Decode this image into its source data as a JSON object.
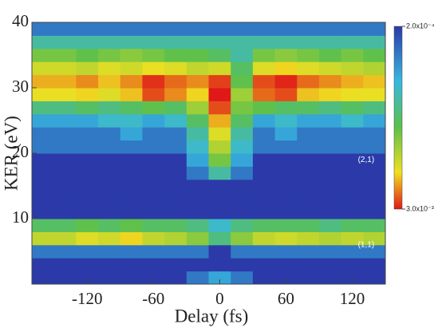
{
  "chart_data": {
    "type": "heatmap",
    "xlabel": "Delay (fs)",
    "ylabel": "KER (eV)",
    "xlim": [
      -170,
      150
    ],
    "ylim": [
      0,
      40
    ],
    "xticks": [
      -120,
      -60,
      0,
      60,
      120
    ],
    "yticks": [
      10,
      20,
      30,
      40
    ],
    "xbins": [
      -170,
      -130,
      -110,
      -90,
      -70,
      -50,
      -30,
      -10,
      10,
      30,
      50,
      70,
      90,
      110,
      130,
      150
    ],
    "ybins": [
      0,
      2,
      4,
      6,
      8,
      10,
      12,
      14,
      16,
      18,
      20,
      22,
      24,
      26,
      28,
      30,
      32,
      34,
      36,
      38,
      40
    ],
    "z": [
      [
        0.0002,
        0.0002,
        0.0002,
        0.0002,
        0.0002,
        0.0002,
        0.0003,
        0.0004,
        0.0003,
        0.0002,
        0.0002,
        0.0002,
        0.0002,
        0.0002,
        0.0002
      ],
      [
        0.0002,
        0.0002,
        0.0002,
        0.0002,
        0.0002,
        0.0002,
        0.0002,
        0.0002,
        0.0002,
        0.0002,
        0.0002,
        0.0002,
        0.0002,
        0.0002,
        0.0002
      ],
      [
        0.0003,
        0.0003,
        0.0003,
        0.0003,
        0.0003,
        0.0003,
        0.0003,
        0.0002,
        0.0003,
        0.0003,
        0.0003,
        0.0003,
        0.0003,
        0.0003,
        0.0003
      ],
      [
        0.0014,
        0.0016,
        0.0015,
        0.0018,
        0.0014,
        0.0013,
        0.0011,
        0.0007,
        0.0011,
        0.0014,
        0.0015,
        0.0014,
        0.0013,
        0.0014,
        0.0013
      ],
      [
        0.0008,
        0.0009,
        0.0008,
        0.0009,
        0.0008,
        0.0008,
        0.0007,
        0.0005,
        0.0007,
        0.0008,
        0.0008,
        0.0008,
        0.0007,
        0.0008,
        0.0008
      ],
      [
        0.0002,
        0.0002,
        0.0002,
        0.0002,
        0.0002,
        0.0002,
        0.0002,
        0.0002,
        0.0002,
        0.0002,
        0.0002,
        0.0002,
        0.0002,
        0.0002,
        0.0002
      ],
      [
        0.0002,
        0.0002,
        0.0002,
        0.0002,
        0.0002,
        0.0002,
        0.0002,
        0.0002,
        0.0002,
        0.0002,
        0.0002,
        0.0002,
        0.0002,
        0.0002,
        0.0002
      ],
      [
        0.0002,
        0.0002,
        0.0002,
        0.0002,
        0.0002,
        0.0002,
        0.0002,
        0.0002,
        0.0002,
        0.0002,
        0.0002,
        0.0002,
        0.0002,
        0.0002,
        0.0002
      ],
      [
        0.0002,
        0.0002,
        0.0002,
        0.0002,
        0.0002,
        0.0002,
        0.0003,
        0.0006,
        0.0003,
        0.0002,
        0.0002,
        0.0002,
        0.0002,
        0.0002,
        0.0002
      ],
      [
        0.0002,
        0.0002,
        0.0002,
        0.0002,
        0.0002,
        0.0002,
        0.0004,
        0.001,
        0.0004,
        0.0002,
        0.0002,
        0.0002,
        0.0002,
        0.0002,
        0.0002
      ],
      [
        0.0003,
        0.0003,
        0.0003,
        0.0003,
        0.0003,
        0.0003,
        0.0005,
        0.0013,
        0.0005,
        0.0003,
        0.0003,
        0.0003,
        0.0003,
        0.0003,
        0.0003
      ],
      [
        0.0003,
        0.0003,
        0.0003,
        0.0004,
        0.0003,
        0.0003,
        0.0006,
        0.0016,
        0.0006,
        0.0003,
        0.0004,
        0.0003,
        0.0003,
        0.0003,
        0.0003
      ],
      [
        0.0004,
        0.0004,
        0.0005,
        0.0005,
        0.0004,
        0.0005,
        0.0008,
        0.002,
        0.0008,
        0.0004,
        0.0005,
        0.0004,
        0.0004,
        0.0005,
        0.0004
      ],
      [
        0.0007,
        0.0008,
        0.0007,
        0.0008,
        0.0009,
        0.0008,
        0.0012,
        0.0026,
        0.001,
        0.0009,
        0.0008,
        0.0008,
        0.0007,
        0.0008,
        0.0007
      ],
      [
        0.0017,
        0.0018,
        0.0016,
        0.0019,
        0.0026,
        0.0022,
        0.0018,
        0.003,
        0.0012,
        0.0024,
        0.0026,
        0.0019,
        0.0018,
        0.0017,
        0.0017
      ],
      [
        0.002,
        0.0022,
        0.0019,
        0.0022,
        0.0028,
        0.0024,
        0.0022,
        0.0027,
        0.0009,
        0.0026,
        0.0029,
        0.0024,
        0.0022,
        0.002,
        0.0019
      ],
      [
        0.0015,
        0.0014,
        0.0016,
        0.0015,
        0.0017,
        0.0016,
        0.0014,
        0.0015,
        0.0008,
        0.0016,
        0.0018,
        0.0016,
        0.0015,
        0.0014,
        0.0013
      ],
      [
        0.001,
        0.0009,
        0.001,
        0.0011,
        0.001,
        0.0009,
        0.0009,
        0.0008,
        0.0006,
        0.001,
        0.0011,
        0.001,
        0.0009,
        0.001,
        0.0009
      ],
      [
        0.0006,
        0.0006,
        0.0006,
        0.0006,
        0.0006,
        0.0006,
        0.0006,
        0.0006,
        0.0006,
        0.0006,
        0.0006,
        0.0006,
        0.0006,
        0.0006,
        0.0006
      ],
      [
        0.0003,
        0.0003,
        0.0003,
        0.0003,
        0.0003,
        0.0003,
        0.0003,
        0.0003,
        0.0003,
        0.0003,
        0.0003,
        0.0003,
        0.0003,
        0.0003,
        0.0003
      ]
    ],
    "colorbar_lim": [
      0.0002,
      0.003
    ],
    "colorbar_ticks": [
      {
        "value": 0.0002,
        "label": "2.0x10⁻⁴"
      },
      {
        "value": 0.003,
        "label": "3.0x10⁻³"
      }
    ],
    "annotations": [
      {
        "text": "(2,1)",
        "x": 140,
        "y": 19
      },
      {
        "text": "(1,1)",
        "x": 140,
        "y": 6
      }
    ]
  }
}
